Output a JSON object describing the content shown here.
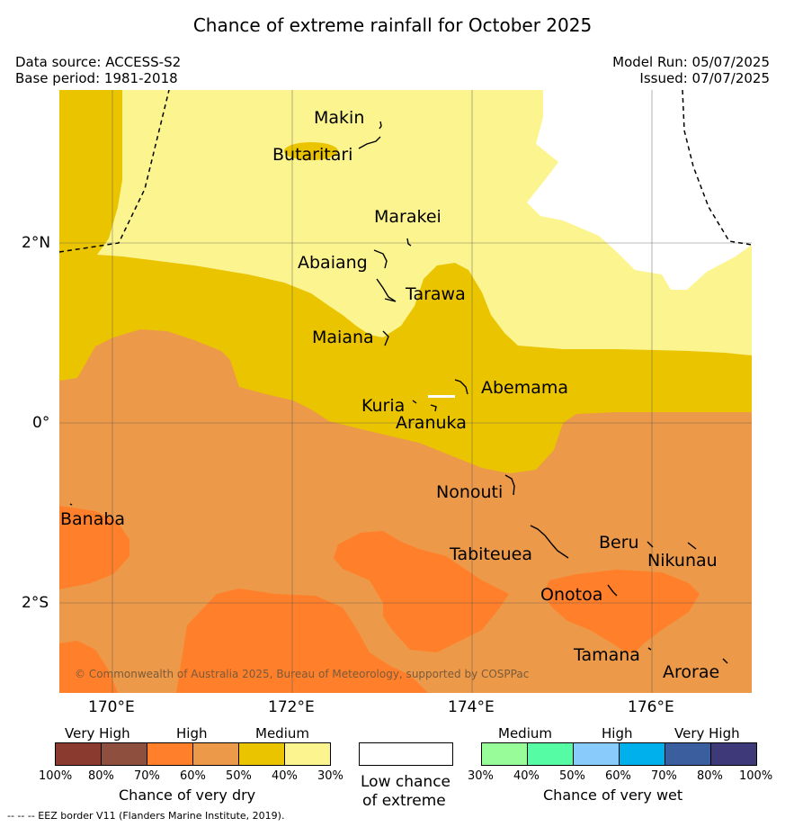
{
  "title": "Chance of extreme rainfall for October 2025",
  "data_source": "Data source: ACCESS-S2",
  "base_period": "Base period: 1981-2018",
  "model_run": "Model Run: 05/07/2025",
  "issued": "Issued: 07/07/2025",
  "copyright": "© Commonwealth of Australia 2025, Bureau of Meteorology, supported by COSPPac",
  "lat_ticks": [
    "2°N",
    "0°",
    "2°S"
  ],
  "lon_ticks": [
    "170°E",
    "172°E",
    "174°E",
    "176°E"
  ],
  "places": [
    "Makin",
    "Butaritari",
    "Marakei",
    "Abaiang",
    "Tarawa",
    "Maiana",
    "Abemama",
    "Kuria",
    "Aranuka",
    "Nonouti",
    "Banaba",
    "Tabiteuea",
    "Beru",
    "Nikunau",
    "Onotoa",
    "Tamana",
    "Arorae"
  ],
  "colors": {
    "dry_very_high_1": "#8B3A2F",
    "dry_very_high_2": "#8E4F3E",
    "dry_high_1": "#FF7F2A",
    "dry_high_2": "#EC9A49",
    "dry_medium_1": "#EBC400",
    "dry_medium_2": "#FCF48E",
    "low": "#FFFFFF",
    "wet_medium_1": "#98FC98",
    "wet_medium_2": "#56FCA4",
    "wet_high_1": "#89CCFC",
    "wet_high_2": "#00B0EC",
    "wet_very_high_1": "#3A5E9E",
    "wet_very_high_2": "#3E3A7A"
  },
  "legend": {
    "dry": {
      "categories": [
        "Very High",
        "High",
        "Medium"
      ],
      "percents": [
        "100%",
        "80%",
        "70%",
        "60%",
        "50%",
        "40%",
        "30%"
      ],
      "caption": "Chance of very dry"
    },
    "low": {
      "caption_line1": "Low chance",
      "caption_line2": "of extreme"
    },
    "wet": {
      "categories": [
        "Medium",
        "High",
        "Very High"
      ],
      "percents": [
        "30%",
        "40%",
        "50%",
        "60%",
        "70%",
        "80%",
        "100%"
      ],
      "caption": "Chance of very wet"
    }
  },
  "footer": "--  --  -- EEZ border V11 (Flanders Marine Institute, 2019)."
}
